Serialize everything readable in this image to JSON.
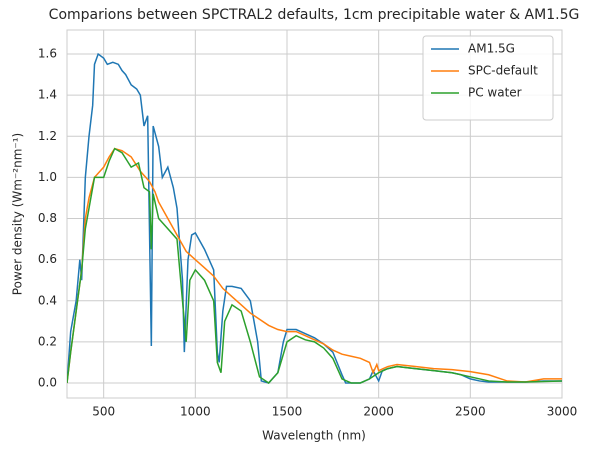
{
  "chart_data": {
    "type": "line",
    "title": "Comparions between SPCTRAL2 defaults, 1cm precipitable water & AM1.5G",
    "xlabel": "Wavelength (nm)",
    "ylabel": "Power density (Wm⁻²nm⁻¹)",
    "xlim": [
      300,
      3000
    ],
    "ylim": [
      -0.073,
      1.717
    ],
    "xticks": [
      500,
      1000,
      1500,
      2000,
      2500,
      3000
    ],
    "yticks": [
      {
        "value": 0,
        "label": "0.0"
      },
      0.2,
      0.4,
      0.6,
      0.8,
      {
        "value": 1,
        "label": "1.0"
      },
      1.2,
      1.4,
      1.6
    ],
    "grid": true,
    "legend": "upper right",
    "series": [
      {
        "name": "AM1.5G",
        "color": "#1f77b4",
        "x": [
          300,
          320,
          350,
          370,
          380,
          400,
          420,
          440,
          450,
          470,
          500,
          520,
          550,
          580,
          600,
          620,
          650,
          680,
          700,
          720,
          740,
          760,
          770,
          800,
          820,
          850,
          880,
          900,
          930,
          940,
          960,
          980,
          1000,
          1050,
          1100,
          1120,
          1130,
          1150,
          1170,
          1200,
          1250,
          1300,
          1340,
          1360,
          1400,
          1450,
          1480,
          1500,
          1550,
          1600,
          1650,
          1700,
          1750,
          1800,
          1820,
          1900,
          1950,
          1970,
          2000,
          2020,
          2050,
          2100,
          2150,
          2200,
          2300,
          2400,
          2450,
          2500,
          2550,
          2600,
          2700,
          2800,
          2900,
          3000
        ],
        "values": [
          0,
          0.25,
          0.4,
          0.6,
          0.5,
          1.0,
          1.2,
          1.35,
          1.55,
          1.6,
          1.58,
          1.55,
          1.56,
          1.55,
          1.52,
          1.5,
          1.45,
          1.43,
          1.4,
          1.25,
          1.3,
          0.18,
          1.25,
          1.15,
          1.0,
          1.05,
          0.95,
          0.85,
          0.5,
          0.15,
          0.6,
          0.72,
          0.73,
          0.65,
          0.55,
          0.15,
          0.1,
          0.35,
          0.47,
          0.47,
          0.46,
          0.4,
          0.2,
          0.01,
          0.0,
          0.05,
          0.2,
          0.26,
          0.26,
          0.24,
          0.22,
          0.19,
          0.15,
          0.04,
          0.0,
          0.0,
          0.02,
          0.06,
          0.01,
          0.06,
          0.07,
          0.08,
          0.075,
          0.07,
          0.06,
          0.05,
          0.04,
          0.02,
          0.01,
          0.005,
          0.005,
          0.005,
          0.01,
          0.01
        ]
      },
      {
        "name": "SPC-default",
        "color": "#ff7f0e",
        "x": [
          300,
          320,
          350,
          380,
          400,
          420,
          450,
          480,
          500,
          530,
          560,
          600,
          650,
          700,
          750,
          780,
          800,
          850,
          900,
          950,
          1000,
          1050,
          1100,
          1150,
          1200,
          1250,
          1300,
          1350,
          1400,
          1450,
          1500,
          1550,
          1600,
          1650,
          1700,
          1750,
          1800,
          1850,
          1900,
          1950,
          1970,
          1990,
          2000,
          2050,
          2100,
          2200,
          2300,
          2400,
          2500,
          2600,
          2700,
          2800,
          2900,
          3000
        ],
        "values": [
          0,
          0.15,
          0.35,
          0.55,
          0.8,
          0.9,
          1.0,
          1.03,
          1.05,
          1.1,
          1.14,
          1.13,
          1.1,
          1.03,
          0.98,
          0.93,
          0.88,
          0.8,
          0.72,
          0.64,
          0.6,
          0.56,
          0.52,
          0.46,
          0.42,
          0.38,
          0.34,
          0.31,
          0.28,
          0.26,
          0.25,
          0.25,
          0.23,
          0.21,
          0.19,
          0.16,
          0.14,
          0.13,
          0.12,
          0.1,
          0.05,
          0.09,
          0.06,
          0.08,
          0.09,
          0.08,
          0.07,
          0.065,
          0.055,
          0.04,
          0.01,
          0.005,
          0.02,
          0.02
        ]
      },
      {
        "name": "PC water",
        "color": "#2ca02c",
        "x": [
          300,
          320,
          350,
          380,
          400,
          420,
          450,
          500,
          530,
          560,
          600,
          650,
          690,
          720,
          750,
          760,
          770,
          800,
          850,
          900,
          930,
          950,
          970,
          1000,
          1050,
          1100,
          1120,
          1140,
          1160,
          1200,
          1250,
          1300,
          1350,
          1400,
          1450,
          1500,
          1550,
          1600,
          1650,
          1700,
          1750,
          1800,
          1850,
          1900,
          1950,
          2000,
          2050,
          2100,
          2200,
          2300,
          2400,
          2500,
          2600,
          2700,
          2800,
          3000
        ],
        "values": [
          0,
          0.15,
          0.35,
          0.55,
          0.75,
          0.85,
          1.0,
          1.0,
          1.08,
          1.14,
          1.12,
          1.05,
          1.07,
          0.95,
          0.93,
          0.65,
          0.92,
          0.8,
          0.75,
          0.7,
          0.4,
          0.2,
          0.5,
          0.55,
          0.5,
          0.4,
          0.1,
          0.05,
          0.3,
          0.38,
          0.35,
          0.2,
          0.03,
          0.0,
          0.05,
          0.2,
          0.23,
          0.21,
          0.2,
          0.17,
          0.12,
          0.02,
          0.0,
          0.0,
          0.02,
          0.05,
          0.07,
          0.08,
          0.07,
          0.06,
          0.05,
          0.03,
          0.01,
          0.005,
          0.005,
          0.01
        ]
      }
    ]
  }
}
